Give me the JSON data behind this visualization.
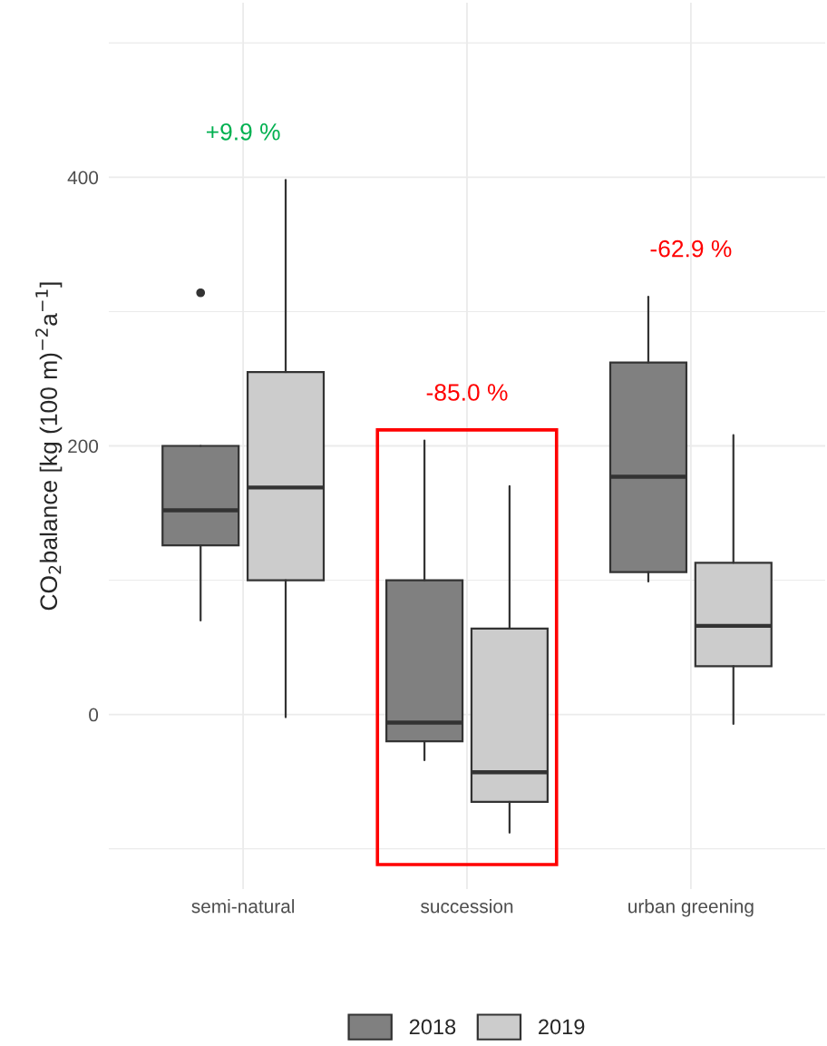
{
  "chart_data": {
    "type": "box",
    "ylabel": "CO$_{2}$balance [kg (100 m)$^{−2}$a$^{−1}$]",
    "categories": [
      "semi-natural",
      "succession",
      "urban greening"
    ],
    "series": [
      {
        "name": "2018",
        "color": "#808080",
        "boxes": [
          {
            "low": 70,
            "q1": 126,
            "median": 152,
            "q3": 200,
            "high": 200,
            "outliers": [
              314
            ]
          },
          {
            "low": -34,
            "q1": -20,
            "median": -6,
            "q3": 100,
            "high": 204
          },
          {
            "low": 99,
            "q1": 106,
            "median": 177,
            "q3": 262,
            "high": 311
          }
        ]
      },
      {
        "name": "2019",
        "color": "#cccccc",
        "boxes": [
          {
            "low": -2,
            "q1": 100,
            "median": 169,
            "q3": 255,
            "high": 398
          },
          {
            "low": -88,
            "q1": -65,
            "median": -43,
            "q3": 64,
            "high": 170
          },
          {
            "low": -7,
            "q1": 36,
            "median": 66,
            "q3": 113,
            "high": 208
          }
        ]
      }
    ],
    "ylim": [
      -130,
      530
    ],
    "yticks": [
      0,
      200,
      400
    ],
    "grid": true,
    "legend": "bottom",
    "annotations": [
      "+9.9 %",
      "-85.0 %",
      "-62.9 %"
    ]
  }
}
